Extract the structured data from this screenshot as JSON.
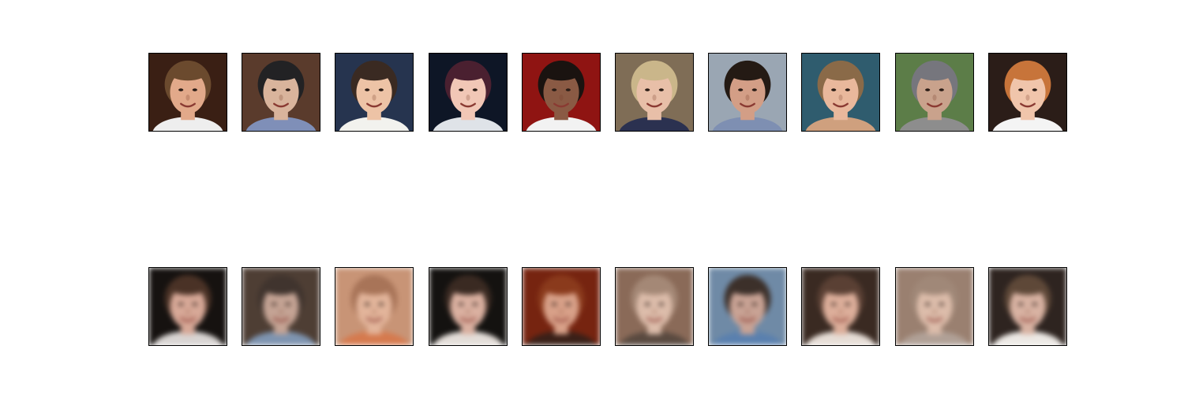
{
  "figure": {
    "rows": [
      {
        "kind": "original",
        "faces": [
          {
            "bg": "#3a1f14",
            "hair": "#6b4a2e",
            "skin": "#e2a98a",
            "shirt": "#eeeeee",
            "icon": "face-photo-icon"
          },
          {
            "bg": "#5a3b2c",
            "hair": "#222224",
            "skin": "#d9b49c",
            "shirt": "#7f8fb8",
            "icon": "face-photo-icon"
          },
          {
            "bg": "#26344f",
            "hair": "#3a2a22",
            "skin": "#edc3a6",
            "shirt": "#f2f2ee",
            "icon": "face-photo-icon"
          },
          {
            "bg": "#0e1626",
            "hair": "#4a2030",
            "skin": "#f1c7b6",
            "shirt": "#dfe3e8",
            "icon": "face-photo-icon"
          },
          {
            "bg": "#8f1412",
            "hair": "#1a1310",
            "skin": "#8a5a44",
            "shirt": "#f2f2f2",
            "icon": "face-photo-icon"
          },
          {
            "bg": "#7f6d56",
            "hair": "#cab68a",
            "skin": "#e8bfa8",
            "shirt": "#2b3150",
            "icon": "face-photo-icon"
          },
          {
            "bg": "#9aa6b3",
            "hair": "#241a14",
            "skin": "#d39e86",
            "shirt": "#7e8fb2",
            "icon": "face-photo-icon"
          },
          {
            "bg": "#2f5c6e",
            "hair": "#8a6a48",
            "skin": "#e9b89c",
            "shirt": "#cfa07e",
            "icon": "face-photo-icon"
          },
          {
            "bg": "#5c7d48",
            "hair": "#76767d",
            "skin": "#c9a28c",
            "shirt": "#8d8d8d",
            "icon": "face-photo-icon"
          },
          {
            "bg": "#2b1d18",
            "hair": "#c7743a",
            "skin": "#f0c5ab",
            "shirt": "#f4f4f4",
            "icon": "face-photo-icon"
          }
        ]
      },
      {
        "kind": "reconstruction",
        "faces": [
          {
            "bg": "#161210",
            "hair": "#4a3226",
            "skin": "#d7a897",
            "shirt": "#d8d4d2",
            "icon": "blurry-face-icon"
          },
          {
            "bg": "#4e3e34",
            "hair": "#40342e",
            "skin": "#c4a394",
            "shirt": "#7e94b0",
            "icon": "blurry-face-icon"
          },
          {
            "bg": "#c89476",
            "hair": "#a87458",
            "skin": "#e2b49a",
            "shirt": "#d57a4e",
            "icon": "blurry-face-icon"
          },
          {
            "bg": "#141210",
            "hair": "#3a2a22",
            "skin": "#dab0a0",
            "shirt": "#e3ddd8",
            "icon": "blurry-face-icon"
          },
          {
            "bg": "#762410",
            "hair": "#8a3a1c",
            "skin": "#d8a088",
            "shirt": "#3a2018",
            "icon": "blurry-face-icon"
          },
          {
            "bg": "#8a6a58",
            "hair": "#a48876",
            "skin": "#dcbcaa",
            "shirt": "#5a4a40",
            "icon": "blurry-face-icon"
          },
          {
            "bg": "#6f8aa6",
            "hair": "#3c302a",
            "skin": "#c8a294",
            "shirt": "#5a80ae",
            "icon": "blurry-face-icon"
          },
          {
            "bg": "#3a2a22",
            "hair": "#5a4034",
            "skin": "#dcae9a",
            "shirt": "#e6ddd6",
            "icon": "blurry-face-icon"
          },
          {
            "bg": "#9a8070",
            "hair": "#a08878",
            "skin": "#dcbcaa",
            "shirt": "#b0a096",
            "icon": "blurry-face-icon"
          },
          {
            "bg": "#2e2420",
            "hair": "#5e4838",
            "skin": "#d8b2a2",
            "shirt": "#ece8e4",
            "icon": "blurry-face-icon"
          }
        ]
      }
    ]
  }
}
